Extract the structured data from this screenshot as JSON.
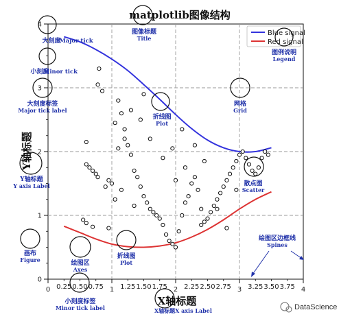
{
  "title": "matplotlib图像结构",
  "xlabel": "X轴标题",
  "ylabel": "Y轴标题",
  "axes": {
    "xlim": [
      0,
      4
    ],
    "ylim": [
      0,
      4
    ],
    "major_x_ticks": [
      "0",
      "1",
      "2",
      "3",
      "4"
    ],
    "minor_x_ticks": [
      "0.25",
      "0.50",
      "0.75",
      "1.25",
      "1.50",
      "1.75",
      "2.25",
      "2.50",
      "2.75",
      "3.25",
      "3.50",
      "3.75"
    ],
    "minor_x_values": [
      0.25,
      0.5,
      0.75,
      1.25,
      1.5,
      1.75,
      2.25,
      2.5,
      2.75,
      3.25,
      3.5,
      3.75
    ],
    "major_y_ticks": [
      "0",
      "1",
      "2",
      "3",
      "4"
    ],
    "grid": true
  },
  "legend": {
    "items": [
      {
        "label": "Blue signal",
        "color": "#3333dd"
      },
      {
        "label": "Red signal",
        "color": "#dd3333"
      }
    ],
    "position": "top-right"
  },
  "annotations": {
    "title": {
      "zh": "图像标题",
      "en": "Title"
    },
    "major_tick": {
      "zh": "大刻度",
      "en": "Major tick"
    },
    "minor_tick": {
      "zh": "小刻度",
      "en": "Minor tick"
    },
    "major_tick_label": {
      "zh": "大刻度标签",
      "en": "Major tick label"
    },
    "y_axis_label": {
      "zh": "Y轴标题",
      "en": "Y axis Label"
    },
    "figure": {
      "zh": "画布",
      "en": "Figure"
    },
    "axes": {
      "zh": "绘图区",
      "en": "Axes"
    },
    "plot_bottom": {
      "zh": "折线图",
      "en": "Plot"
    },
    "minor_tick_label": {
      "zh": "小刻度标签",
      "en": "Minor tick label"
    },
    "x_axis_label": {
      "zh": "X轴标题",
      "en": "X axis Label"
    },
    "plot_top": {
      "zh": "折线图",
      "en": "Plot"
    },
    "grid": {
      "zh": "网格",
      "en": "Grid"
    },
    "legend": {
      "zh": "图例说明",
      "en": "Legend"
    },
    "scatter": {
      "zh": "散点图",
      "en": "Scatter"
    },
    "spines": {
      "zh": "绘图区边框线",
      "en": "Spines"
    }
  },
  "watermark": "DataScience",
  "chart_data": {
    "type": "scatter",
    "title": "matplotlib图像结构",
    "xlabel": "X轴标题",
    "ylabel": "Y轴标题",
    "xlim": [
      0,
      4
    ],
    "ylim": [
      0,
      4
    ],
    "grid": true,
    "series": [
      {
        "name": "Blue signal",
        "type": "line",
        "color": "#3333dd",
        "x": [
          0.25,
          0.5,
          0.75,
          1.0,
          1.25,
          1.5,
          1.75,
          2.0,
          2.25,
          2.5,
          2.75,
          3.0,
          3.25,
          3.5
        ],
        "y": [
          3.8,
          3.72,
          3.6,
          3.45,
          3.27,
          3.05,
          2.82,
          2.58,
          2.36,
          2.18,
          2.06,
          2.0,
          2.0,
          2.06
        ]
      },
      {
        "name": "Red signal",
        "type": "line",
        "color": "#dd3333",
        "x": [
          0.25,
          0.5,
          0.75,
          1.0,
          1.25,
          1.5,
          1.75,
          2.0,
          2.25,
          2.5,
          2.75,
          3.0,
          3.25,
          3.5
        ],
        "y": [
          0.83,
          0.73,
          0.63,
          0.55,
          0.51,
          0.5,
          0.52,
          0.57,
          0.66,
          0.78,
          0.93,
          1.1,
          1.25,
          1.37
        ]
      },
      {
        "name": "",
        "type": "scatter",
        "x": [
          0.8,
          0.78,
          0.85,
          0.6,
          1.05,
          1.1,
          0.6,
          0.65,
          0.7,
          0.75,
          0.78,
          0.95,
          1.0,
          0.55,
          0.6,
          0.7,
          0.95,
          1.05,
          1.15,
          1.1,
          1.15,
          1.2,
          1.25,
          1.3,
          1.35,
          1.4,
          1.45,
          1.5,
          1.55,
          1.6,
          1.7,
          1.75,
          1.8,
          1.85,
          1.9,
          1.95,
          2.0,
          2.05,
          2.1,
          2.15,
          2.2,
          2.25,
          2.3,
          2.35,
          2.4,
          2.45,
          2.5,
          2.55,
          2.6,
          2.65,
          2.7,
          2.75,
          2.8,
          2.85,
          2.9,
          2.95,
          3.0,
          3.05,
          3.1,
          3.15,
          3.2,
          3.25,
          3.3,
          3.35,
          3.4,
          3.45,
          1.3,
          1.45,
          1.5,
          1.6,
          1.2,
          2.3,
          2.45,
          2.1,
          2.0,
          1.8,
          1.95,
          2.15,
          2.65,
          2.95,
          0.9,
          1.35,
          1.65,
          2.4,
          2.8
        ],
        "y": [
          3.3,
          3.05,
          2.95,
          2.15,
          2.45,
          2.05,
          1.8,
          1.75,
          1.7,
          1.65,
          1.6,
          1.55,
          1.5,
          0.93,
          0.88,
          0.82,
          0.8,
          1.25,
          1.4,
          2.8,
          2.6,
          2.35,
          2.1,
          1.95,
          1.7,
          1.6,
          1.45,
          1.3,
          1.2,
          1.1,
          1.0,
          0.95,
          0.85,
          0.7,
          0.6,
          0.55,
          0.5,
          0.75,
          1.0,
          1.2,
          1.3,
          1.5,
          1.6,
          1.4,
          1.1,
          0.9,
          0.95,
          1.05,
          1.15,
          1.25,
          1.35,
          1.45,
          1.55,
          1.65,
          1.75,
          1.85,
          1.95,
          2.0,
          1.9,
          1.8,
          1.7,
          1.65,
          1.75,
          1.9,
          2.0,
          1.95,
          2.65,
          2.5,
          2.9,
          2.2,
          2.2,
          2.1,
          1.85,
          2.35,
          1.55,
          1.9,
          2.05,
          1.75,
          1.1,
          1.4,
          1.45,
          1.15,
          1.05,
          0.85,
          0.8
        ]
      }
    ]
  }
}
